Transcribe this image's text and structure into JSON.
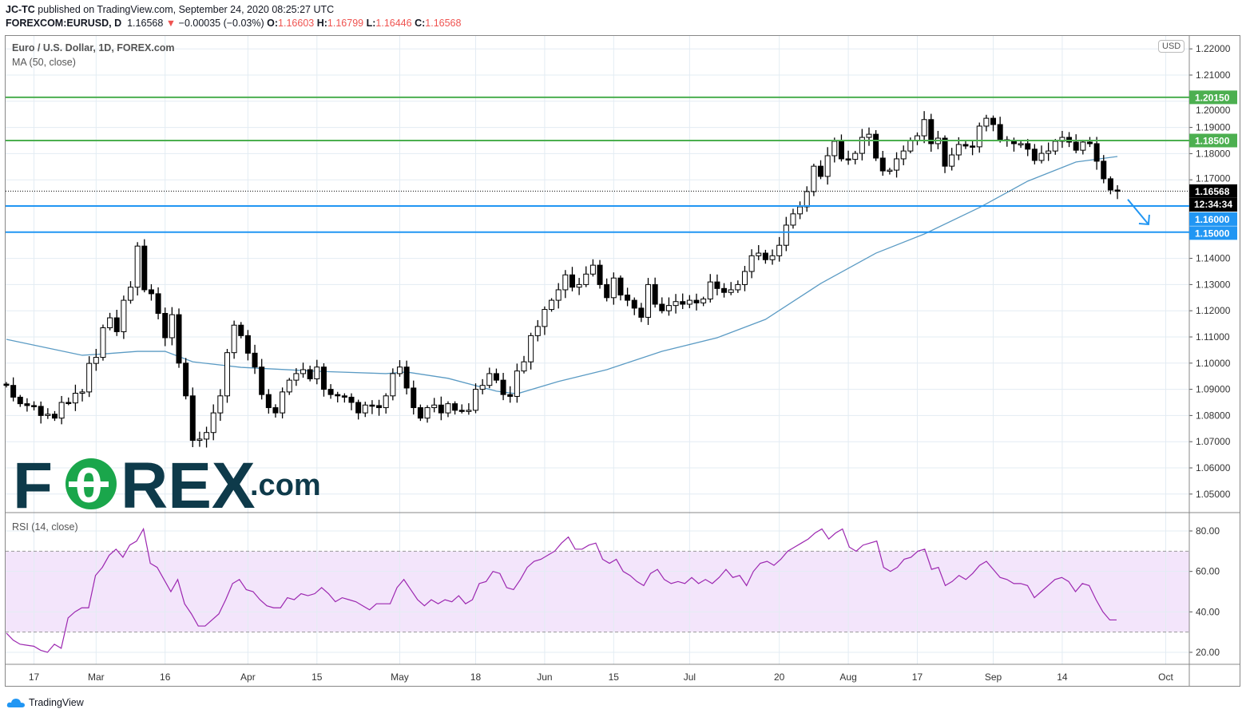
{
  "header": {
    "publisher": "JC-TC",
    "published_text": "published on TradingView.com, September 24, 2020 08:25:27 UTC",
    "symbol": "FOREXCOM:EURUSD, D",
    "last": "1.16568",
    "change": "−0.00035 (−0.03%)",
    "o_label": "O:",
    "o": "1.16603",
    "h_label": "H:",
    "h": "1.16799",
    "l_label": "L:",
    "l": "1.16446",
    "c_label": "C:",
    "c": "1.16568"
  },
  "legend": {
    "title": "Euro / U.S. Dollar, 1D, FOREX.com",
    "ma": "MA (50, close)",
    "rsi": "RSI (14, close)"
  },
  "currency_badge": "USD",
  "countdown": "12:34:34",
  "logo": {
    "text": "FOREX.com"
  },
  "footer": {
    "brand": "TradingView"
  },
  "colors": {
    "up": "#ffffff",
    "down": "#000000",
    "green_level": "#4caf50",
    "blue_level": "#2196f3",
    "ma": "#5b9bc4",
    "rsi": "#9c27b0",
    "rsi_band": "#f3e5fb"
  },
  "chart_data": [
    {
      "type": "candlestick",
      "title": "Euro / U.S. Dollar, 1D, FOREX.com",
      "ylim": [
        1.045,
        1.2195
      ],
      "y_ticks": [
        "1.05000",
        "1.06000",
        "1.07000",
        "1.08000",
        "1.09000",
        "1.10000",
        "1.11000",
        "1.12000",
        "1.13000",
        "1.14000",
        "1.15000",
        "1.16000",
        "1.17000",
        "1.18000",
        "1.19000",
        "1.20000",
        "1.21000",
        "1.22000"
      ],
      "x_ticks": [
        {
          "label": "17",
          "bar": 4
        },
        {
          "label": "Mar",
          "bar": 13
        },
        {
          "label": "16",
          "bar": 23
        },
        {
          "label": "Apr",
          "bar": 35
        },
        {
          "label": "15",
          "bar": 45
        },
        {
          "label": "May",
          "bar": 57
        },
        {
          "label": "18",
          "bar": 68
        },
        {
          "label": "Jun",
          "bar": 78
        },
        {
          "label": "15",
          "bar": 88
        },
        {
          "label": "Jul",
          "bar": 99
        },
        {
          "label": "20",
          "bar": 112
        },
        {
          "label": "Aug",
          "bar": 122
        },
        {
          "label": "17",
          "bar": 132
        },
        {
          "label": "Sep",
          "bar": 143
        },
        {
          "label": "14",
          "bar": 153
        },
        {
          "label": "Oct",
          "bar": 168
        }
      ],
      "close": [
        1.0915,
        1.087,
        1.0845,
        1.0838,
        1.0835,
        1.08,
        1.0805,
        1.079,
        1.085,
        1.0848,
        1.0885,
        1.089,
        1.0999,
        1.1022,
        1.1135,
        1.1173,
        1.112,
        1.124,
        1.129,
        1.1447,
        1.128,
        1.1265,
        1.119,
        1.1097,
        1.1185,
        1.1,
        1.0875,
        1.0705,
        1.071,
        1.0735,
        1.081,
        1.0875,
        1.104,
        1.1145,
        1.1105,
        1.1038,
        1.0985,
        1.088,
        1.083,
        1.081,
        1.089,
        1.0935,
        1.096,
        1.0975,
        1.094,
        1.0985,
        1.09,
        1.088,
        1.0875,
        1.087,
        1.085,
        1.081,
        1.084,
        1.0838,
        1.083,
        1.0875,
        1.096,
        1.0985,
        1.0905,
        1.083,
        1.079,
        1.083,
        1.084,
        1.081,
        1.0845,
        1.082,
        1.0818,
        1.082,
        1.09,
        1.0915,
        1.096,
        1.0935,
        1.088,
        1.0873,
        1.097,
        1.1005,
        1.1105,
        1.114,
        1.1205,
        1.124,
        1.128,
        1.1337,
        1.129,
        1.13,
        1.134,
        1.1374,
        1.13,
        1.125,
        1.1325,
        1.126,
        1.124,
        1.121,
        1.1175,
        1.13,
        1.1225,
        1.12,
        1.122,
        1.1235,
        1.1225,
        1.124,
        1.123,
        1.1245,
        1.131,
        1.1285,
        1.127,
        1.128,
        1.13,
        1.135,
        1.141,
        1.142,
        1.1395,
        1.141,
        1.145,
        1.1527,
        1.157,
        1.1597,
        1.1655,
        1.1752,
        1.1713,
        1.1792,
        1.1847,
        1.178,
        1.1778,
        1.1801,
        1.1862,
        1.1874,
        1.1783,
        1.1734,
        1.1737,
        1.178,
        1.181,
        1.185,
        1.1868,
        1.193,
        1.1838,
        1.1859,
        1.1752,
        1.1795,
        1.1835,
        1.1829,
        1.1826,
        1.1905,
        1.1935,
        1.1911,
        1.1853,
        1.185,
        1.1838,
        1.1838,
        1.1817,
        1.1774,
        1.1801,
        1.181,
        1.1847,
        1.1862,
        1.1844,
        1.1813,
        1.1844,
        1.1838,
        1.1771,
        1.1704,
        1.1661,
        1.16568
      ],
      "first_open": 1.092,
      "ma50": [
        [
          0,
          1.1091
        ],
        [
          11,
          1.103
        ],
        [
          14,
          1.1035
        ],
        [
          19,
          1.1045
        ],
        [
          23,
          1.1045
        ],
        [
          27,
          1.1005
        ],
        [
          34,
          1.0984
        ],
        [
          45,
          1.0969
        ],
        [
          55,
          1.096
        ],
        [
          58,
          1.0966
        ],
        [
          64,
          1.0942
        ],
        [
          71,
          1.0893
        ],
        [
          74,
          1.0883
        ],
        [
          80,
          1.093
        ],
        [
          87,
          1.0975
        ],
        [
          95,
          1.1045
        ],
        [
          103,
          1.1097
        ],
        [
          110,
          1.1167
        ],
        [
          118,
          1.1304
        ],
        [
          126,
          1.142
        ],
        [
          133,
          1.1493
        ],
        [
          141,
          1.1594
        ],
        [
          148,
          1.1695
        ],
        [
          155,
          1.1768
        ],
        [
          161,
          1.1789
        ]
      ],
      "levels": [
        {
          "value": 1.2015,
          "label": "1.20150",
          "color": "green"
        },
        {
          "value": 1.185,
          "label": "1.18500",
          "color": "green"
        },
        {
          "value": 1.16,
          "label": "1.16000",
          "color": "blue"
        },
        {
          "value": 1.15,
          "label": "1.15000",
          "color": "blue"
        }
      ],
      "last_price": {
        "value": 1.16568,
        "label": "1.16568"
      },
      "arrow": {
        "from": [
          162.5,
          1.1625
        ],
        "to": [
          165.5,
          1.153
        ]
      }
    },
    {
      "type": "line",
      "title": "RSI (14, close)",
      "ylim": [
        15,
        86
      ],
      "y_ticks": [
        "20.00",
        "40.00",
        "60.00",
        "80.00"
      ],
      "band": [
        30,
        70
      ],
      "values": [
        29.5,
        26,
        24,
        23.5,
        23,
        21,
        20,
        24,
        22,
        37,
        40,
        42,
        42,
        58,
        62,
        68,
        71,
        67,
        73,
        75,
        81,
        64,
        62,
        56,
        50,
        56,
        44,
        39,
        33,
        33,
        36,
        39,
        46,
        54,
        56,
        51,
        50,
        46,
        43,
        42,
        42,
        47,
        46,
        49,
        48,
        49,
        52,
        49,
        45,
        47,
        46,
        45,
        43,
        41,
        44,
        44,
        44,
        52,
        56,
        51,
        46,
        43,
        46,
        44,
        46,
        45,
        48,
        44,
        46,
        54,
        55,
        60,
        59,
        52,
        51,
        56,
        62,
        65,
        66,
        68,
        70,
        74,
        77,
        71,
        71,
        73,
        74,
        66,
        64,
        66,
        60,
        58,
        55,
        53,
        59,
        61,
        56,
        54,
        55,
        54,
        57,
        54,
        56,
        54,
        57,
        61,
        57,
        58,
        53,
        60,
        64,
        65,
        63,
        66,
        70,
        72,
        74,
        76,
        79,
        81,
        76,
        79,
        81,
        72,
        70,
        73,
        74,
        75,
        62,
        60,
        62,
        66,
        67,
        70,
        71,
        61,
        62,
        53,
        55,
        58,
        56,
        59,
        63,
        65,
        61,
        57,
        56,
        54,
        54,
        53,
        47,
        50,
        53,
        56,
        57,
        55,
        50,
        54,
        53,
        46,
        40,
        36,
        36
      ]
    }
  ]
}
